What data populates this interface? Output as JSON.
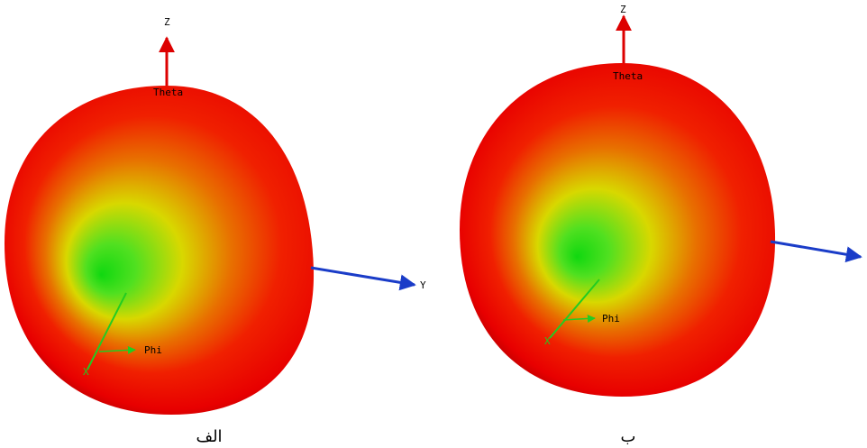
{
  "panels": [
    {
      "caption": "الف",
      "z_label": "Z",
      "y_label": "Y",
      "x_label": "X",
      "theta_label": "Theta",
      "phi_label": "Phi"
    },
    {
      "caption": "ب",
      "z_label": "Z",
      "x_label": "X",
      "theta_label": "Theta",
      "phi_label": "Phi"
    }
  ]
}
